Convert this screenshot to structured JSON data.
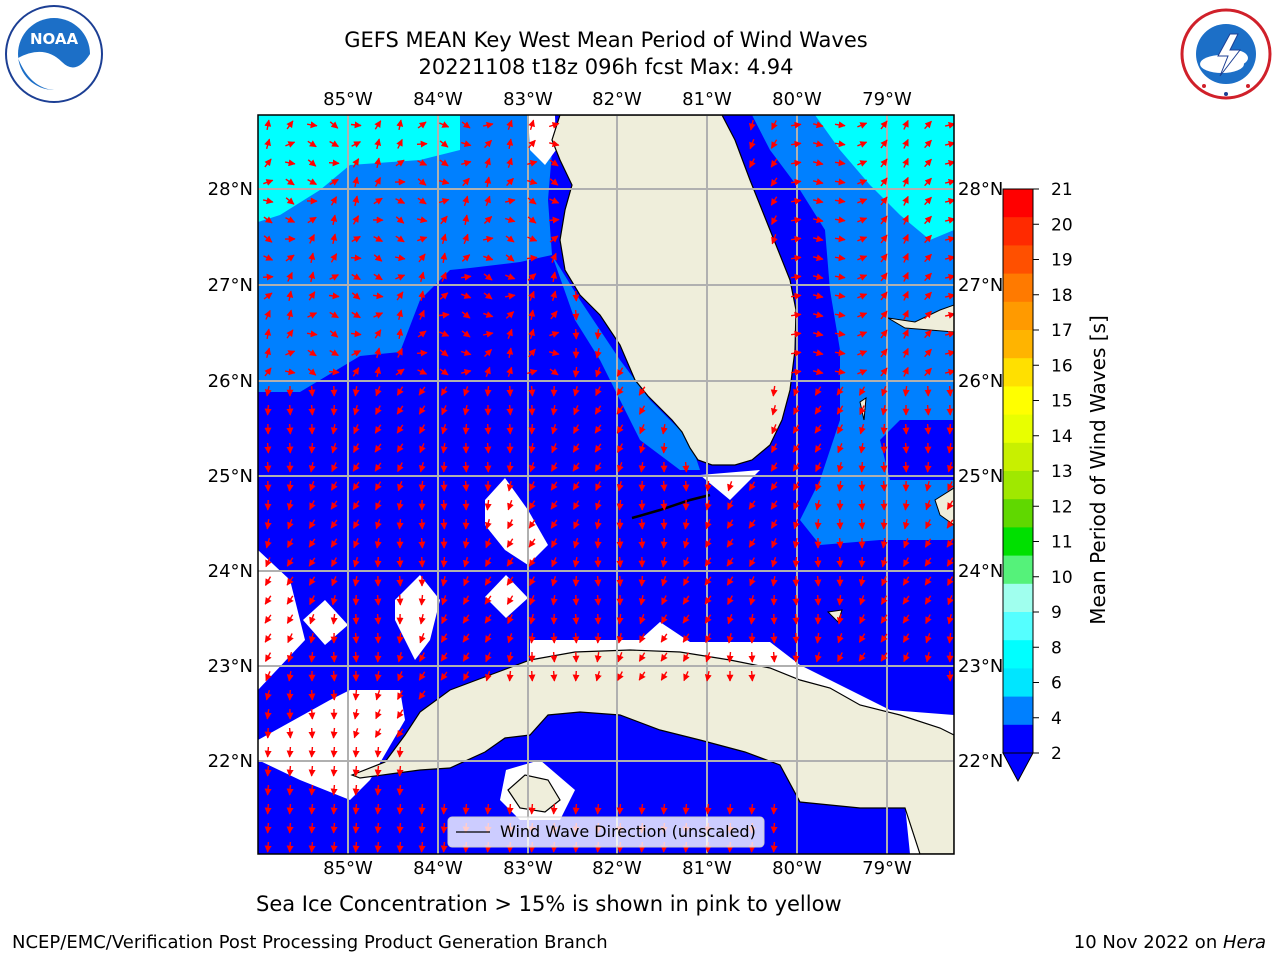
{
  "header": {
    "title_line1": "GEFS MEAN Key West Mean Period of Wind Waves",
    "title_line2": "20221108 t18z 096h fcst   Max: 4.94"
  },
  "logos": {
    "left": {
      "text": "NOAA",
      "icon": "noaa-logo"
    },
    "right": {
      "icon": "nws-logo"
    }
  },
  "map": {
    "lon_labels": [
      "85°W",
      "84°W",
      "83°W",
      "82°W",
      "81°W",
      "80°W",
      "79°W"
    ],
    "lat_labels": [
      "28°N",
      "27°N",
      "26°N",
      "25°N",
      "24°N",
      "23°N",
      "22°N"
    ],
    "legend_label": "Wind Wave Direction (unscaled)",
    "colors": {
      "band_2_4": "#0000ff",
      "band_4_6": "#0080ff",
      "band_6_8": "#00ffff",
      "land": "#efeedb",
      "arrow": "#ff0000"
    }
  },
  "colorbar": {
    "label": "Mean Period of Wind Waves [s]",
    "ticks": [
      "21",
      "20",
      "19",
      "18",
      "17",
      "16",
      "15",
      "14",
      "13",
      "12",
      "11",
      "10",
      "9",
      "8",
      "6",
      "4",
      "2"
    ],
    "colors": [
      "#ff0000",
      "#ff2a00",
      "#ff5000",
      "#ff7a00",
      "#ff9a00",
      "#ffb400",
      "#ffe000",
      "#ffff00",
      "#e8ff00",
      "#c8f000",
      "#a0e800",
      "#60d800",
      "#00e000",
      "#55f27a",
      "#a0ffee",
      "#55ffff",
      "#00ffff",
      "#00e6ff",
      "#0080ff",
      "#0000ff"
    ]
  },
  "caption": "Sea Ice Concentration > 15% is shown in pink to yellow",
  "footer": {
    "left": "NCEP/EMC/Verification Post Processing Product Generation Branch",
    "right_date": "10 Nov 2022 on ",
    "right_host": "Hera"
  }
}
